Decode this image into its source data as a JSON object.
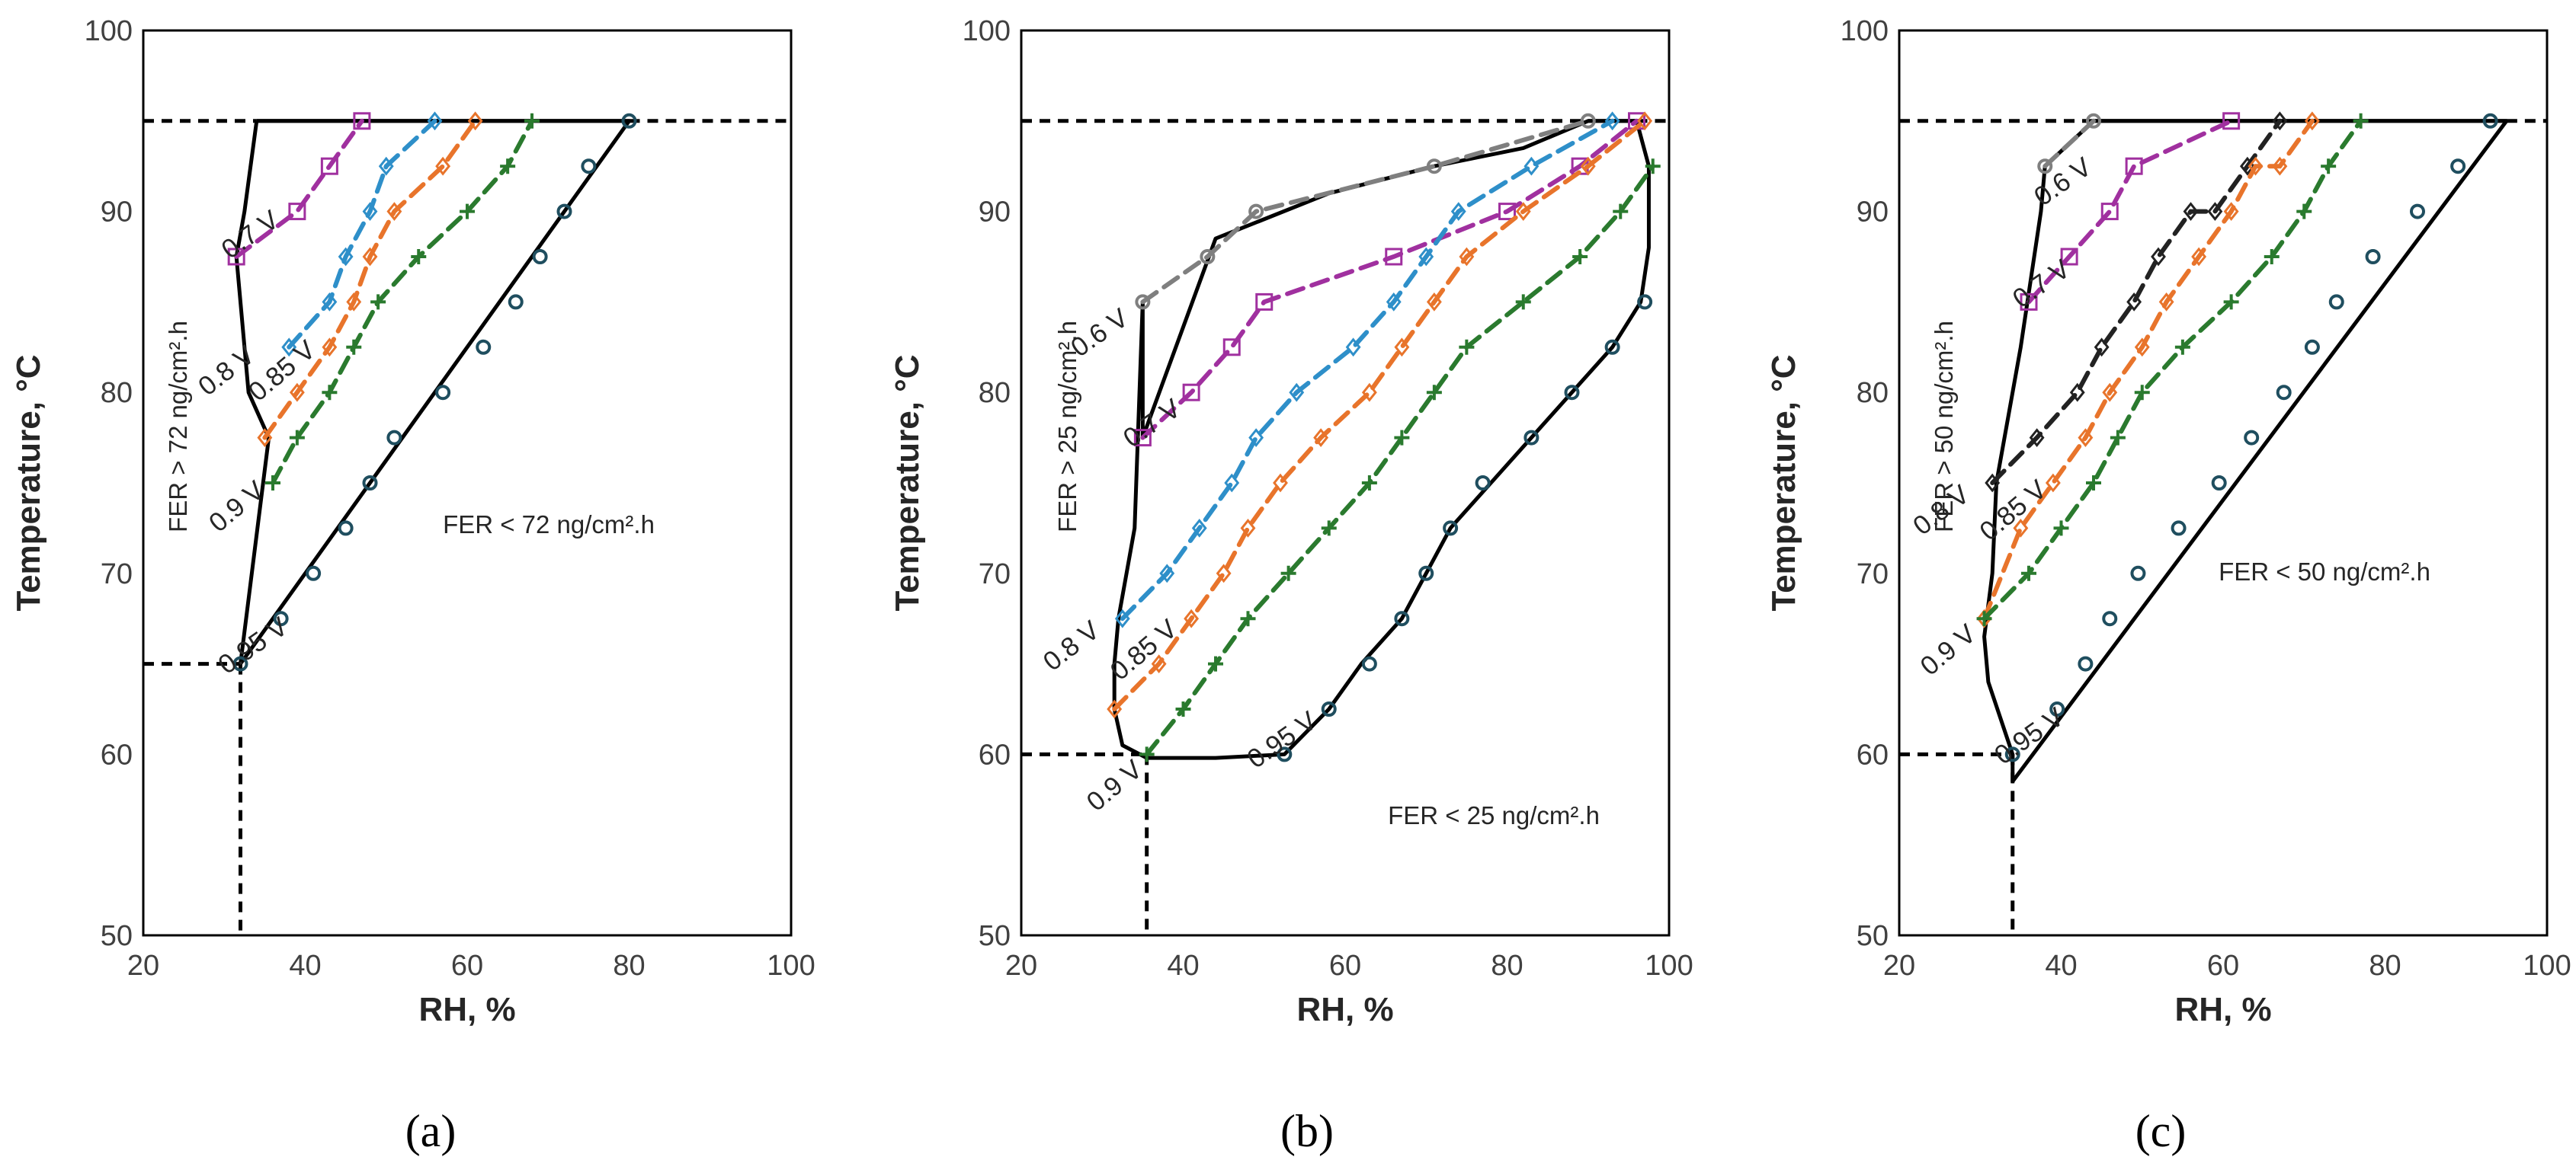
{
  "colors": {
    "boundary": "#000000",
    "v06": "#7f7f7f",
    "v07": "#a0309f",
    "v08": "#2e8fc9",
    "v085": "#e8742b",
    "v09": "#2a7a2e",
    "v095": "#1f4e5f",
    "v08_c": "#222222"
  },
  "chart_data": [
    {
      "type": "line",
      "panel_label": "(a)",
      "xlabel": "RH, %",
      "ylabel": "Temperature, °C",
      "xlim": [
        20,
        100
      ],
      "ylim": [
        50,
        100
      ],
      "xticks": [
        "20",
        "40",
        "60",
        "80",
        "100"
      ],
      "yticks": [
        "50",
        "60",
        "70",
        "80",
        "90",
        "100"
      ],
      "region_above": "FER > 72 ng/cm².h",
      "region_below": "FER < 72 ng/cm².h",
      "boundary_x": [
        34,
        32.5,
        31.5,
        33,
        35.5,
        32,
        80,
        80,
        34
      ],
      "boundary_y": [
        95,
        90,
        87.5,
        80,
        77.5,
        65,
        95,
        95,
        95
      ],
      "top_line_y": 95,
      "ref_h_y": 65,
      "ref_v_x": 32,
      "series": [
        {
          "name": "0.7 V",
          "marker": "square",
          "color_key": "v07",
          "x": [
            31.5,
            39,
            43,
            47
          ],
          "y": [
            87.5,
            90,
            92.5,
            95
          ]
        },
        {
          "name": "0.8 V",
          "marker": "diamond",
          "color_key": "v08",
          "x": [
            38,
            43,
            45,
            48,
            50,
            56
          ],
          "y": [
            82.5,
            85,
            87.5,
            90,
            92.5,
            95
          ]
        },
        {
          "name": "0.85 V",
          "marker": "diamond",
          "color_key": "v085",
          "x": [
            35,
            39,
            43,
            46,
            48,
            51,
            57,
            61
          ],
          "y": [
            77.5,
            80,
            82.5,
            85,
            87.5,
            90,
            92.5,
            95
          ]
        },
        {
          "name": "0.9 V",
          "marker": "plus",
          "color_key": "v09",
          "x": [
            36,
            39,
            43,
            46,
            49,
            54,
            60,
            65,
            68
          ],
          "y": [
            75,
            77.5,
            80,
            82.5,
            85,
            87.5,
            90,
            92.5,
            95
          ]
        },
        {
          "name": "0.95 V",
          "marker": "circle",
          "color_key": "v095",
          "x": [
            32,
            37,
            41,
            45,
            48,
            51,
            57,
            62,
            66,
            69,
            72,
            75,
            80
          ],
          "y": [
            65,
            67.5,
            70,
            72.5,
            75,
            77.5,
            80,
            82.5,
            85,
            87.5,
            90,
            92.5,
            95
          ]
        }
      ]
    },
    {
      "type": "line",
      "panel_label": "(b)",
      "xlabel": "RH, %",
      "ylabel": "Temperature, °C",
      "xlim": [
        20,
        100
      ],
      "ylim": [
        50,
        100
      ],
      "xticks": [
        "20",
        "40",
        "60",
        "80",
        "100"
      ],
      "yticks": [
        "50",
        "60",
        "70",
        "80",
        "90",
        "100"
      ],
      "region_above": "FER > 25 ng/cm².h",
      "region_below": "FER < 25 ng/cm².h",
      "boundary_x": [
        35,
        35,
        44,
        58,
        71,
        82,
        90,
        96,
        97.5,
        97.5,
        96.5,
        93,
        88,
        83,
        78,
        73,
        70,
        67,
        62,
        58,
        52.5,
        44,
        35.5,
        32.5,
        31.5,
        31.5,
        32,
        34,
        35
      ],
      "boundary_y": [
        85,
        77.5,
        88.5,
        91,
        92.5,
        93.5,
        95,
        95,
        92.5,
        88,
        85,
        82.5,
        80,
        77.5,
        75,
        72.5,
        70,
        67.5,
        65,
        62.5,
        60,
        59.8,
        59.8,
        60.5,
        62.5,
        65,
        67.5,
        72.5,
        85
      ],
      "top_line_y": 95,
      "ref_h_y": 60,
      "ref_v_x": 35.5,
      "series": [
        {
          "name": "0.6 V",
          "marker": "circle",
          "color_key": "v06",
          "x": [
            35,
            43,
            49,
            71,
            90
          ],
          "y": [
            85,
            87.5,
            90,
            92.5,
            95
          ]
        },
        {
          "name": "0.7 V",
          "marker": "square",
          "color_key": "v07",
          "x": [
            35,
            41,
            46,
            50,
            66,
            80,
            89,
            96
          ],
          "y": [
            77.5,
            80,
            82.5,
            85,
            87.5,
            90,
            92.5,
            95
          ]
        },
        {
          "name": "0.8 V",
          "marker": "diamond",
          "color_key": "v08",
          "x": [
            32.5,
            38,
            42,
            46,
            49,
            54,
            61,
            66,
            70,
            74,
            83,
            93
          ],
          "y": [
            67.5,
            70,
            72.5,
            75,
            77.5,
            80,
            82.5,
            85,
            87.5,
            90,
            92.5,
            95
          ]
        },
        {
          "name": "0.85 V",
          "marker": "diamond",
          "color_key": "v085",
          "x": [
            31.5,
            37,
            41,
            45,
            48,
            52,
            57,
            63,
            67,
            71,
            75,
            82,
            90,
            97
          ],
          "y": [
            62.5,
            65,
            67.5,
            70,
            72.5,
            75,
            77.5,
            80,
            82.5,
            85,
            87.5,
            90,
            92.5,
            95
          ]
        },
        {
          "name": "0.9 V",
          "marker": "plus",
          "color_key": "v09",
          "x": [
            35.5,
            40,
            44,
            48,
            53,
            58,
            63,
            67,
            71,
            75,
            82,
            89,
            94,
            98
          ],
          "y": [
            60,
            62.5,
            65,
            67.5,
            70,
            72.5,
            75,
            77.5,
            80,
            82.5,
            85,
            87.5,
            90,
            92.5
          ]
        },
        {
          "name": "0.95 V",
          "marker": "circle",
          "color_key": "v095",
          "x": [
            52.5,
            58,
            63,
            67,
            70,
            73,
            77,
            83,
            88,
            93,
            97
          ],
          "y": [
            60,
            62.5,
            65,
            67.5,
            70,
            72.5,
            75,
            77.5,
            80,
            82.5,
            85
          ]
        }
      ]
    },
    {
      "type": "line",
      "panel_label": "(c)",
      "xlabel": "RH, %",
      "ylabel": "Temperature, °C",
      "xlim": [
        20,
        100
      ],
      "ylim": [
        50,
        100
      ],
      "xticks": [
        "20",
        "40",
        "60",
        "80",
        "100"
      ],
      "yticks": [
        "50",
        "60",
        "70",
        "80",
        "90",
        "100"
      ],
      "region_above": "FER > 50 ng/cm².h",
      "region_below": "FER < 50 ng/cm².h",
      "boundary_x": [
        44,
        38,
        37.5,
        35,
        32,
        31.5,
        30.5,
        31,
        34,
        34,
        95,
        95,
        44
      ],
      "boundary_y": [
        95,
        92.5,
        90,
        82.5,
        75,
        70,
        66.5,
        64,
        60,
        58.5,
        95,
        95,
        95
      ],
      "top_line_y": 95,
      "ref_h_y": 60,
      "ref_v_x": 34,
      "series": [
        {
          "name": "0.6 V",
          "marker": "circle",
          "color_key": "v06",
          "x": [
            38,
            44
          ],
          "y": [
            92.5,
            95
          ]
        },
        {
          "name": "0.7 V",
          "marker": "square",
          "color_key": "v07",
          "x": [
            36,
            41,
            46,
            49,
            61
          ],
          "y": [
            85,
            87.5,
            90,
            92.5,
            95
          ]
        },
        {
          "name": "0.8 V",
          "marker": "diamond",
          "color_key": "v08_c",
          "x": [
            31.5,
            37,
            42,
            45,
            49,
            52,
            56,
            59,
            63,
            67
          ],
          "y": [
            75,
            77.5,
            80,
            82.5,
            85,
            87.5,
            90,
            90,
            92.5,
            95
          ]
        },
        {
          "name": "0.85 V",
          "marker": "diamond",
          "color_key": "v085",
          "x": [
            30.5,
            35,
            39,
            43,
            46,
            50,
            53,
            57,
            61,
            64,
            67,
            71
          ],
          "y": [
            67.5,
            72.5,
            75,
            77.5,
            80,
            82.5,
            85,
            87.5,
            90,
            92.5,
            92.5,
            95
          ]
        },
        {
          "name": "0.9 V",
          "marker": "plus",
          "color_key": "v09",
          "x": [
            30.5,
            36,
            40,
            44,
            47,
            50,
            55,
            61,
            66,
            70,
            73,
            77
          ],
          "y": [
            67.5,
            70,
            72.5,
            75,
            77.5,
            80,
            82.5,
            85,
            87.5,
            90,
            92.5,
            95
          ]
        },
        {
          "name": "0.95 V",
          "marker": "circle",
          "color_key": "v095",
          "x": [
            34,
            39.5,
            43,
            46,
            49.5,
            54.5,
            59.5,
            63.5,
            67.5,
            71,
            74,
            78.5,
            84,
            89,
            93
          ],
          "y": [
            60,
            62.5,
            65,
            67.5,
            70,
            72.5,
            75,
            77.5,
            80,
            82.5,
            85,
            87.5,
            90,
            92.5,
            95
          ]
        }
      ]
    }
  ]
}
